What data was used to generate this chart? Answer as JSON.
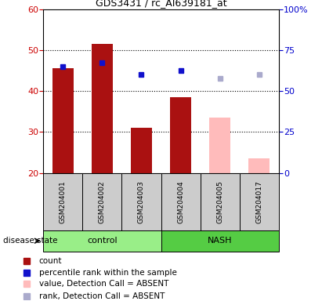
{
  "title": "GDS3431 / rc_AI639181_at",
  "samples": [
    "GSM204001",
    "GSM204002",
    "GSM204003",
    "GSM204004",
    "GSM204005",
    "GSM204017"
  ],
  "bar_bottom": 20,
  "ylim_left": [
    20,
    60
  ],
  "ylim_right": [
    0,
    100
  ],
  "yticks_left": [
    20,
    30,
    40,
    50,
    60
  ],
  "yticks_right": [
    0,
    25,
    50,
    75,
    100
  ],
  "count_values": [
    45.5,
    51.5,
    31.0,
    38.5,
    null,
    null
  ],
  "count_color": "#aa1111",
  "count_absent_values": [
    null,
    null,
    null,
    null,
    33.5,
    23.5
  ],
  "count_absent_color": "#ffbbbb",
  "percentile_values": [
    46.0,
    47.0,
    44.0,
    45.0,
    null,
    null
  ],
  "percentile_color": "#1111cc",
  "rank_absent_values": [
    null,
    null,
    null,
    null,
    43.0,
    44.0
  ],
  "rank_absent_color": "#aaaacc",
  "legend_items": [
    {
      "label": "count",
      "color": "#aa1111"
    },
    {
      "label": "percentile rank within the sample",
      "color": "#1111cc"
    },
    {
      "label": "value, Detection Call = ABSENT",
      "color": "#ffbbbb"
    },
    {
      "label": "rank, Detection Call = ABSENT",
      "color": "#aaaacc"
    }
  ],
  "disease_state_label": "disease state",
  "plot_bg_color": "#ffffff",
  "tick_label_color_left": "#cc0000",
  "tick_label_color_right": "#0000cc",
  "sample_bg_color": "#cccccc",
  "control_color": "#99ee88",
  "nash_color": "#55cc44",
  "bar_width": 0.55
}
